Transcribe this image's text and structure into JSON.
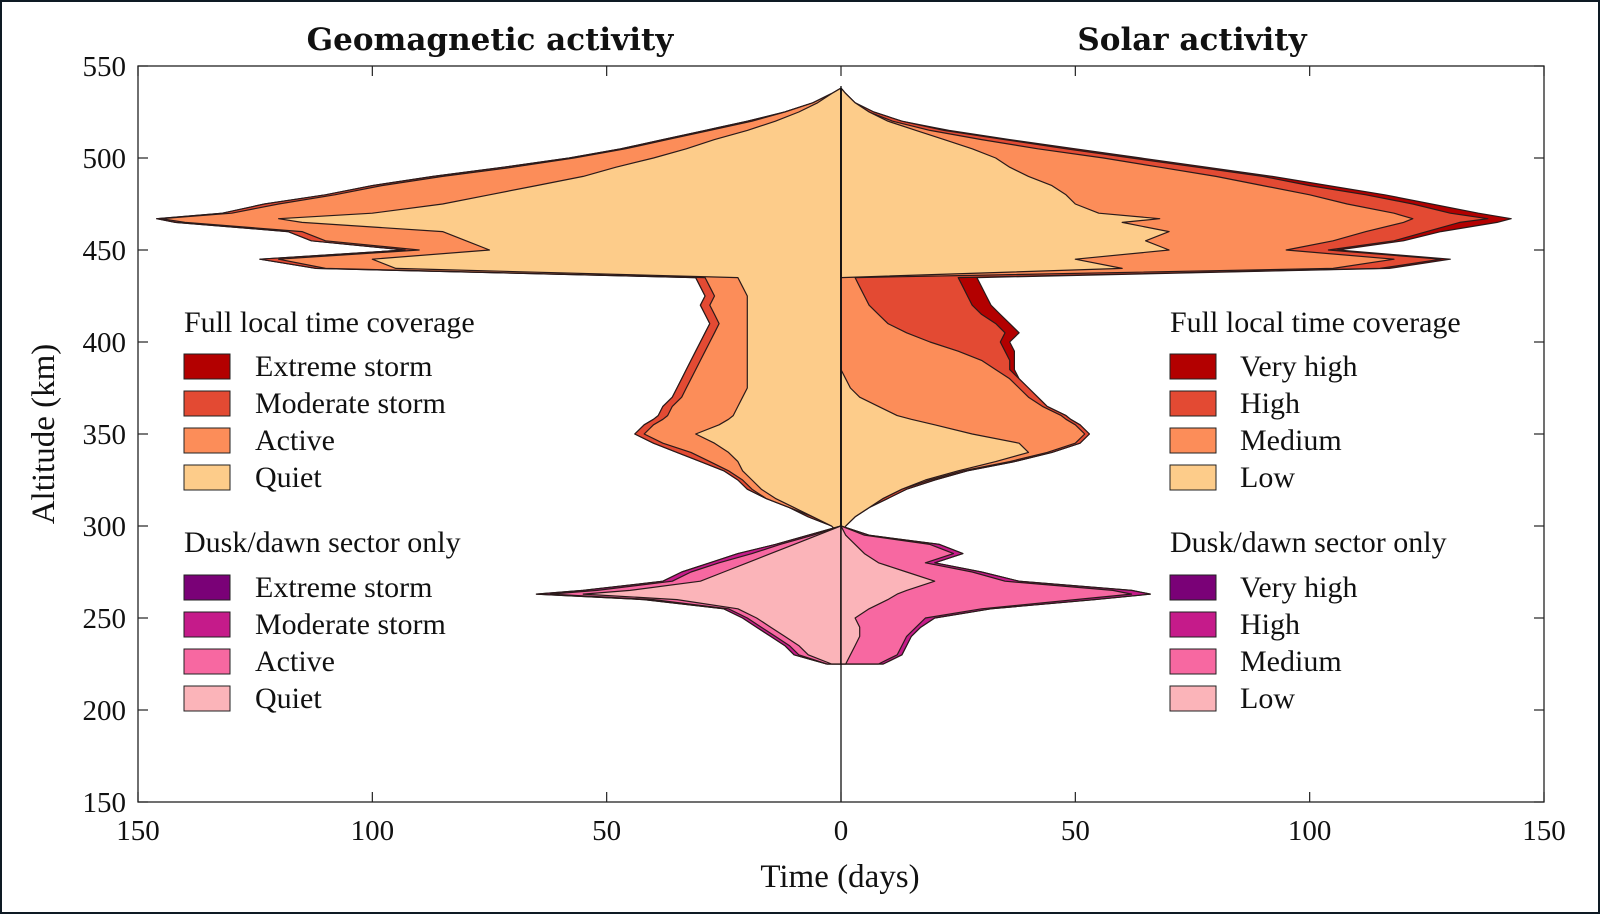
{
  "chart_data": {
    "type": "area",
    "layout": "mirrored-horizontal-stacked-area",
    "titles": {
      "left": "Geomagnetic activity",
      "right": "Solar activity"
    },
    "xlabel": "Time (days)",
    "ylabel": "Altitude (km)",
    "xlim": [
      -150,
      150
    ],
    "ylim": [
      150,
      550
    ],
    "x_ticks": [
      "150",
      "100",
      "50",
      "0",
      "50",
      "100",
      "150"
    ],
    "x_tick_values": [
      -150,
      -100,
      -50,
      0,
      50,
      100,
      150
    ],
    "y_ticks": [
      "150",
      "200",
      "250",
      "300",
      "350",
      "400",
      "450",
      "500",
      "550"
    ],
    "y_tick_values": [
      150,
      200,
      250,
      300,
      350,
      400,
      450,
      500,
      550
    ],
    "altitudes": [
      225,
      230,
      235,
      240,
      245,
      250,
      255,
      260,
      263,
      265,
      270,
      275,
      280,
      285,
      290,
      295,
      300,
      305,
      310,
      315,
      320,
      325,
      330,
      335,
      340,
      345,
      350,
      355,
      358,
      360,
      365,
      370,
      375,
      380,
      385,
      390,
      395,
      400,
      405,
      410,
      415,
      420,
      425,
      430,
      435,
      440,
      445,
      450,
      455,
      460,
      465,
      467,
      470,
      475,
      480,
      485,
      490,
      495,
      500,
      505,
      510,
      515,
      520,
      525,
      530,
      535,
      538
    ],
    "left_series": [
      {
        "name": "Quiet",
        "values": [
          0,
          0,
          0,
          0,
          0,
          0,
          0,
          0,
          0,
          0,
          0,
          0,
          0,
          0,
          0,
          0,
          2,
          6,
          10,
          14,
          17,
          19,
          21,
          22,
          24,
          27,
          31,
          26,
          24,
          23,
          22,
          21,
          20,
          20,
          20,
          20,
          20,
          20,
          20,
          20,
          20,
          20,
          20,
          21,
          22,
          95,
          100,
          75,
          80,
          85,
          115,
          120,
          100,
          85,
          75,
          65,
          55,
          48,
          40,
          33,
          27,
          20,
          14,
          9,
          5,
          2,
          0
        ]
      },
      {
        "name": "Active",
        "values": [
          0,
          0,
          0,
          0,
          0,
          0,
          0,
          0,
          0,
          0,
          0,
          0,
          0,
          0,
          0,
          0,
          2,
          6,
          11,
          16,
          19,
          21,
          24,
          28,
          32,
          38,
          42,
          40,
          38,
          37,
          36,
          34,
          33,
          32,
          31,
          30,
          29,
          28,
          27,
          26,
          27,
          28,
          27,
          28,
          29,
          110,
          120,
          90,
          110,
          115,
          140,
          145,
          130,
          120,
          108,
          98,
          85,
          70,
          57,
          46,
          37,
          28,
          19,
          12,
          6,
          2,
          0
        ]
      },
      {
        "name": "Moderate storm",
        "values": [
          0,
          0,
          0,
          0,
          0,
          0,
          0,
          0,
          0,
          0,
          0,
          0,
          0,
          0,
          0,
          0,
          2,
          7,
          11,
          16,
          20,
          22,
          25,
          30,
          35,
          40,
          44,
          42,
          40,
          39,
          38,
          36,
          35,
          34,
          33,
          32,
          31,
          30,
          29,
          28,
          29,
          30,
          29,
          30,
          31,
          112,
          124,
          93,
          113,
          118,
          142,
          146,
          132,
          123,
          110,
          100,
          87,
          72,
          58,
          47,
          38,
          29,
          20,
          12,
          6,
          2,
          0
        ]
      },
      {
        "name": "Extreme storm",
        "values": [
          0,
          0,
          0,
          0,
          0,
          0,
          0,
          0,
          0,
          0,
          0,
          0,
          0,
          0,
          0,
          0,
          2,
          7,
          11,
          16,
          20,
          22,
          25,
          30,
          35,
          40,
          44,
          42,
          40,
          39,
          38,
          36,
          35,
          34,
          33,
          32,
          31,
          30,
          29,
          28,
          29,
          30,
          29,
          30,
          31,
          112,
          124,
          93,
          113,
          118,
          142,
          146,
          132,
          123,
          110,
          100,
          87,
          72,
          58,
          47,
          38,
          29,
          20,
          12,
          6,
          2,
          0
        ]
      }
    ],
    "left_dusk_series": [
      {
        "name": "Quiet",
        "values": [
          2,
          7,
          9,
          12,
          15,
          18,
          22,
          35,
          55,
          45,
          30,
          25,
          20,
          15,
          10,
          5,
          0,
          0,
          0,
          0,
          0,
          0,
          0,
          0,
          0,
          0,
          0,
          0,
          0,
          0,
          0,
          0,
          0,
          0,
          0,
          0,
          0,
          0,
          0,
          0,
          0,
          0,
          0,
          0,
          0,
          0,
          0,
          0,
          0,
          0,
          0,
          0,
          0,
          0,
          0,
          0,
          0,
          0,
          0,
          0,
          0,
          0,
          0,
          0,
          0,
          0,
          0
        ]
      },
      {
        "name": "Active",
        "values": [
          3,
          9,
          11,
          14,
          17,
          20,
          24,
          40,
          62,
          52,
          36,
          32,
          26,
          19,
          13,
          6,
          0,
          0,
          0,
          0,
          0,
          0,
          0,
          0,
          0,
          0,
          0,
          0,
          0,
          0,
          0,
          0,
          0,
          0,
          0,
          0,
          0,
          0,
          0,
          0,
          0,
          0,
          0,
          0,
          0,
          0,
          0,
          0,
          0,
          0,
          0,
          0,
          0,
          0,
          0,
          0,
          0,
          0,
          0,
          0,
          0,
          0,
          0,
          0,
          0,
          0,
          0
        ]
      },
      {
        "name": "Moderate storm",
        "values": [
          3,
          10,
          12,
          15,
          18,
          21,
          25,
          42,
          65,
          55,
          38,
          34,
          28,
          22,
          14,
          7,
          0,
          0,
          0,
          0,
          0,
          0,
          0,
          0,
          0,
          0,
          0,
          0,
          0,
          0,
          0,
          0,
          0,
          0,
          0,
          0,
          0,
          0,
          0,
          0,
          0,
          0,
          0,
          0,
          0,
          0,
          0,
          0,
          0,
          0,
          0,
          0,
          0,
          0,
          0,
          0,
          0,
          0,
          0,
          0,
          0,
          0,
          0,
          0,
          0,
          0,
          0
        ]
      },
      {
        "name": "Extreme storm",
        "values": [
          3,
          10,
          12,
          15,
          18,
          21,
          25,
          42,
          65,
          55,
          38,
          34,
          28,
          22,
          14,
          7,
          0,
          0,
          0,
          0,
          0,
          0,
          0,
          0,
          0,
          0,
          0,
          0,
          0,
          0,
          0,
          0,
          0,
          0,
          0,
          0,
          0,
          0,
          0,
          0,
          0,
          0,
          0,
          0,
          0,
          0,
          0,
          0,
          0,
          0,
          0,
          0,
          0,
          0,
          0,
          0,
          0,
          0,
          0,
          0,
          0,
          0,
          0,
          0,
          0,
          0,
          0
        ]
      }
    ],
    "right_series": [
      {
        "name": "Low",
        "values": [
          0,
          0,
          0,
          0,
          0,
          0,
          0,
          0,
          0,
          0,
          0,
          0,
          0,
          0,
          0,
          0,
          1,
          3,
          6,
          9,
          13,
          18,
          25,
          33,
          40,
          38,
          28,
          20,
          15,
          12,
          8,
          4,
          2,
          1,
          0,
          0,
          0,
          0,
          0,
          0,
          0,
          0,
          0,
          0,
          0,
          60,
          50,
          70,
          65,
          70,
          60,
          68,
          55,
          50,
          48,
          45,
          40,
          36,
          33,
          28,
          22,
          16,
          10,
          6,
          3,
          1,
          0
        ]
      },
      {
        "name": "Medium",
        "values": [
          0,
          0,
          0,
          0,
          0,
          0,
          0,
          0,
          0,
          0,
          0,
          0,
          0,
          0,
          0,
          0,
          1,
          3,
          6,
          9,
          13,
          19,
          26,
          36,
          44,
          50,
          52,
          50,
          48,
          47,
          43,
          40,
          38,
          36,
          33,
          30,
          25,
          19,
          14,
          10,
          8,
          6,
          5,
          4,
          3,
          105,
          118,
          95,
          105,
          112,
          120,
          122,
          118,
          108,
          100,
          90,
          80,
          68,
          56,
          42,
          30,
          19,
          11,
          6,
          3,
          1,
          0
        ]
      },
      {
        "name": "High",
        "values": [
          0,
          0,
          0,
          0,
          0,
          0,
          0,
          0,
          0,
          0,
          0,
          0,
          0,
          0,
          0,
          0,
          1,
          3,
          6,
          10,
          14,
          20,
          27,
          37,
          45,
          51,
          53,
          51,
          49,
          48,
          44,
          42,
          40,
          38,
          36,
          36,
          35,
          34,
          35,
          33,
          30,
          28,
          27,
          26,
          25,
          115,
          128,
          104,
          118,
          125,
          132,
          138,
          130,
          122,
          112,
          100,
          90,
          76,
          62,
          48,
          35,
          22,
          13,
          7,
          3,
          1,
          0
        ]
      },
      {
        "name": "Very high",
        "values": [
          0,
          0,
          0,
          0,
          0,
          0,
          0,
          0,
          0,
          0,
          0,
          0,
          0,
          0,
          0,
          0,
          1,
          3,
          6,
          10,
          14,
          20,
          27,
          37,
          45,
          51,
          53,
          51,
          49,
          48,
          44,
          42,
          40,
          38,
          37,
          37,
          37,
          36,
          38,
          36,
          34,
          32,
          31,
          30,
          29,
          117,
          130,
          106,
          120,
          128,
          140,
          143,
          136,
          126,
          116,
          104,
          92,
          78,
          64,
          50,
          36,
          23,
          13,
          7,
          3,
          1,
          0
        ]
      }
    ],
    "right_dusk_series": [
      {
        "name": "Low",
        "values": [
          1,
          2,
          3,
          4,
          4,
          3,
          6,
          10,
          12,
          14,
          20,
          14,
          8,
          5,
          3,
          1,
          0,
          0,
          0,
          0,
          0,
          0,
          0,
          0,
          0,
          0,
          0,
          0,
          0,
          0,
          0,
          0,
          0,
          0,
          0,
          0,
          0,
          0,
          0,
          0,
          0,
          0,
          0,
          0,
          0,
          0,
          0,
          0,
          0,
          0,
          0,
          0,
          0,
          0,
          0,
          0,
          0,
          0,
          0,
          0,
          0,
          0,
          0,
          0,
          0,
          0,
          0
        ]
      },
      {
        "name": "Medium",
        "values": [
          8,
          12,
          13,
          14,
          16,
          18,
          30,
          50,
          62,
          58,
          35,
          28,
          18,
          24,
          19,
          5,
          0,
          0,
          0,
          0,
          0,
          0,
          0,
          0,
          0,
          0,
          0,
          0,
          0,
          0,
          0,
          0,
          0,
          0,
          0,
          0,
          0,
          0,
          0,
          0,
          0,
          0,
          0,
          0,
          0,
          0,
          0,
          0,
          0,
          0,
          0,
          0,
          0,
          0,
          0,
          0,
          0,
          0,
          0,
          0,
          0,
          0,
          0,
          0,
          0,
          0,
          0
        ]
      },
      {
        "name": "High",
        "values": [
          9,
          13,
          14,
          15,
          17,
          20,
          32,
          54,
          66,
          62,
          38,
          30,
          20,
          26,
          21,
          6,
          0,
          0,
          0,
          0,
          0,
          0,
          0,
          0,
          0,
          0,
          0,
          0,
          0,
          0,
          0,
          0,
          0,
          0,
          0,
          0,
          0,
          0,
          0,
          0,
          0,
          0,
          0,
          0,
          0,
          0,
          0,
          0,
          0,
          0,
          0,
          0,
          0,
          0,
          0,
          0,
          0,
          0,
          0,
          0,
          0,
          0,
          0,
          0,
          0,
          0,
          0
        ]
      },
      {
        "name": "Very high",
        "values": [
          9,
          13,
          14,
          15,
          17,
          20,
          32,
          54,
          66,
          62,
          38,
          30,
          20,
          26,
          21,
          6,
          0,
          0,
          0,
          0,
          0,
          0,
          0,
          0,
          0,
          0,
          0,
          0,
          0,
          0,
          0,
          0,
          0,
          0,
          0,
          0,
          0,
          0,
          0,
          0,
          0,
          0,
          0,
          0,
          0,
          0,
          0,
          0,
          0,
          0,
          0,
          0,
          0,
          0,
          0,
          0,
          0,
          0,
          0,
          0,
          0,
          0,
          0,
          0,
          0,
          0,
          0
        ]
      }
    ],
    "legends": {
      "left": {
        "full_title": "Full local time coverage",
        "full_items": [
          {
            "label": "Extreme storm",
            "color": "#b30000"
          },
          {
            "label": "Moderate storm",
            "color": "#e34a33"
          },
          {
            "label": "Active",
            "color": "#fc8d59"
          },
          {
            "label": "Quiet",
            "color": "#fdcc8a"
          }
        ],
        "dusk_title": "Dusk/dawn sector only",
        "dusk_items": [
          {
            "label": "Extreme storm",
            "color": "#7a0177"
          },
          {
            "label": "Moderate storm",
            "color": "#c51b8a"
          },
          {
            "label": "Active",
            "color": "#f768a1"
          },
          {
            "label": "Quiet",
            "color": "#fbb4b9"
          }
        ]
      },
      "right": {
        "full_title": "Full local time coverage",
        "full_items": [
          {
            "label": "Very high",
            "color": "#b30000"
          },
          {
            "label": "High",
            "color": "#e34a33"
          },
          {
            "label": "Medium",
            "color": "#fc8d59"
          },
          {
            "label": "Low",
            "color": "#fdcc8a"
          }
        ],
        "dusk_title": "Dusk/dawn sector only",
        "dusk_items": [
          {
            "label": "Very high",
            "color": "#7a0177"
          },
          {
            "label": "High",
            "color": "#c51b8a"
          },
          {
            "label": "Medium",
            "color": "#f768a1"
          },
          {
            "label": "Low",
            "color": "#fbb4b9"
          }
        ]
      }
    }
  }
}
